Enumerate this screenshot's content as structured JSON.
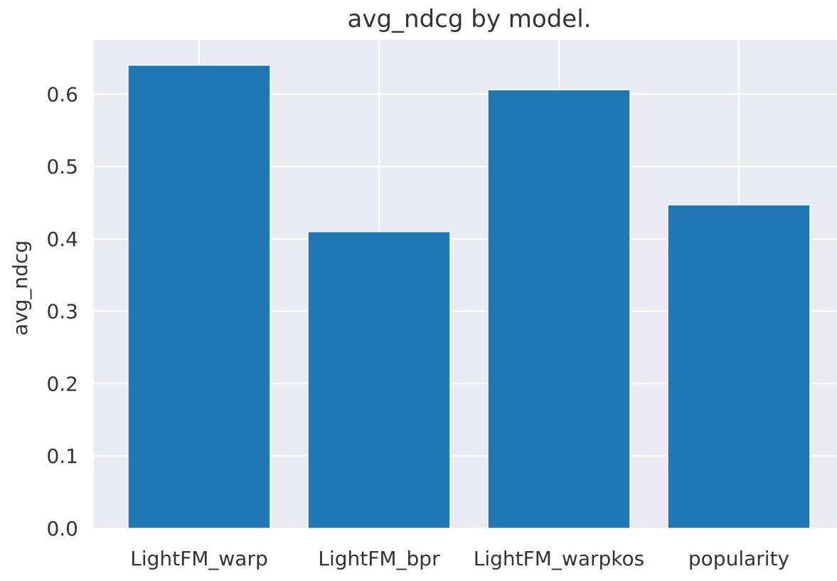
{
  "chart_data": {
    "type": "bar",
    "title": "avg_ndcg by model.",
    "xlabel": "",
    "ylabel": "avg_ndcg",
    "categories": [
      "LightFM_warp",
      "LightFM_bpr",
      "LightFM_warpkos",
      "popularity"
    ],
    "values": [
      0.64,
      0.41,
      0.606,
      0.447
    ],
    "ylim": [
      0,
      0.675
    ],
    "yticks": [
      "0.0",
      "0.1",
      "0.2",
      "0.3",
      "0.4",
      "0.5",
      "0.6"
    ],
    "grid": true,
    "legend": "none",
    "colors": {
      "bar": "#1f77b4",
      "background": "#eaeaf2",
      "grid": "#ffffff"
    }
  }
}
